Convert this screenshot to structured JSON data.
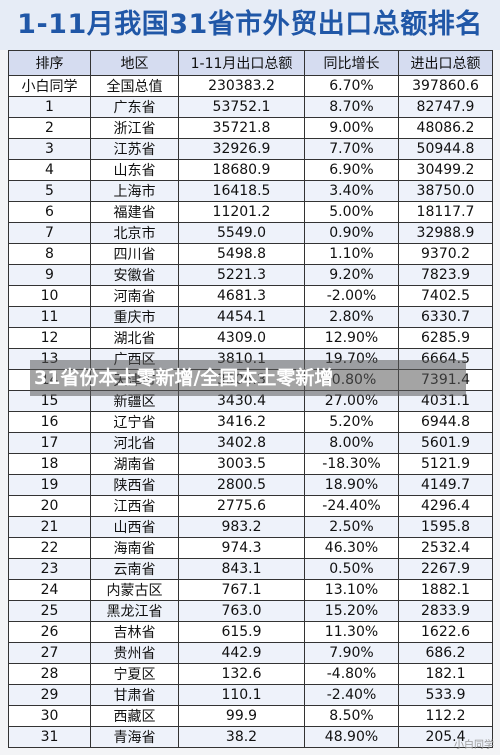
{
  "title": "1-11月我国31省市外贸出口总额排名",
  "headers": [
    "排序",
    "地区",
    "1-11月出口总额",
    "同比增长",
    "进出口总额"
  ],
  "rows": [
    [
      "小白同学",
      "全国总值",
      "230383.2",
      "6.70%",
      "397860.6"
    ],
    [
      "1",
      "广东省",
      "53752.1",
      "8.70%",
      "82747.9"
    ],
    [
      "2",
      "浙江省",
      "35721.8",
      "9.00%",
      "48086.2"
    ],
    [
      "3",
      "江苏省",
      "32926.9",
      "7.70%",
      "50944.8"
    ],
    [
      "4",
      "山东省",
      "18680.9",
      "6.90%",
      "30499.2"
    ],
    [
      "5",
      "上海市",
      "16418.5",
      "3.40%",
      "38750.0"
    ],
    [
      "6",
      "福建省",
      "11201.2",
      "5.00%",
      "18117.7"
    ],
    [
      "7",
      "北京市",
      "5549.0",
      "0.90%",
      "32988.9"
    ],
    [
      "8",
      "四川省",
      "5498.8",
      "1.10%",
      "9370.2"
    ],
    [
      "9",
      "安徽省",
      "5221.3",
      "9.20%",
      "7823.9"
    ],
    [
      "10",
      "河南省",
      "4681.3",
      "-2.00%",
      "7402.5"
    ],
    [
      "11",
      "重庆市",
      "4454.1",
      "2.80%",
      "6330.7"
    ],
    [
      "12",
      "湖北省",
      "4309.0",
      "12.90%",
      "6285.9"
    ],
    [
      "13",
      "广西区",
      "3810.1",
      "19.70%",
      "6664.5"
    ],
    [
      "14",
      "天津市",
      "3506.3",
      "-0.80%",
      "7391.4"
    ],
    [
      "15",
      "新疆区",
      "3430.4",
      "27.00%",
      "4031.1"
    ],
    [
      "16",
      "辽宁省",
      "3416.2",
      "5.20%",
      "6944.8"
    ],
    [
      "17",
      "河北省",
      "3402.8",
      "8.00%",
      "5601.9"
    ],
    [
      "18",
      "湖南省",
      "3003.5",
      "-18.30%",
      "5121.9"
    ],
    [
      "19",
      "陕西省",
      "2800.5",
      "18.90%",
      "4149.7"
    ],
    [
      "20",
      "江西省",
      "2775.6",
      "-24.40%",
      "4296.4"
    ],
    [
      "21",
      "山西省",
      "983.2",
      "2.50%",
      "1595.8"
    ],
    [
      "22",
      "海南省",
      "974.3",
      "46.30%",
      "2532.4"
    ],
    [
      "23",
      "云南省",
      "843.1",
      "0.50%",
      "2267.9"
    ],
    [
      "24",
      "内蒙古区",
      "767.1",
      "13.10%",
      "1882.1"
    ],
    [
      "25",
      "黑龙江省",
      "763.0",
      "15.20%",
      "2833.9"
    ],
    [
      "26",
      "吉林省",
      "615.9",
      "11.30%",
      "1622.6"
    ],
    [
      "27",
      "贵州省",
      "442.9",
      "7.90%",
      "686.2"
    ],
    [
      "28",
      "宁夏区",
      "132.6",
      "-4.80%",
      "182.1"
    ],
    [
      "29",
      "甘肃省",
      "110.1",
      "-2.40%",
      "533.9"
    ],
    [
      "30",
      "西藏区",
      "99.9",
      "8.50%",
      "112.2"
    ],
    [
      "31",
      "青海省",
      "38.2",
      "48.90%",
      "205.4"
    ]
  ],
  "overlay_caption": "31省份本土零新增/全国本土零新增",
  "corner_mark": "小白同学"
}
